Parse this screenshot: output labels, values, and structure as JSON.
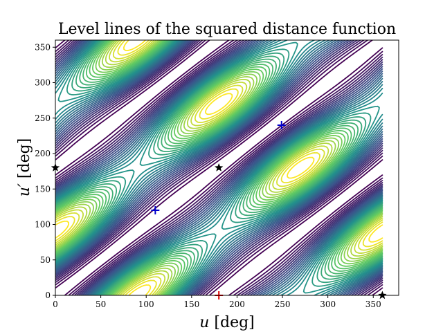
{
  "chart_data": {
    "type": "contour",
    "title": "Level lines of the squared distance function",
    "xlabel_var": "u",
    "xlabel_unit": "[deg]",
    "ylabel_var": "u′",
    "ylabel_unit": "[deg]",
    "xlim": [
      0,
      378
    ],
    "ylim": [
      0,
      360
    ],
    "xticks": [
      0,
      50,
      100,
      150,
      200,
      250,
      300,
      350
    ],
    "yticks": [
      0,
      50,
      100,
      150,
      200,
      250,
      300,
      350
    ],
    "colormap": [
      "#440154",
      "#3b528b",
      "#21918c",
      "#5ec962",
      "#fde725"
    ],
    "contour_params": {
      "A": 80,
      "B": 50,
      "D": 1.5,
      "ps": 1.9
    },
    "markers": [
      {
        "type": "star",
        "color": "#000000",
        "u": 180,
        "v": 180
      },
      {
        "type": "star",
        "color": "#000000",
        "u": 0,
        "v": 180
      },
      {
        "type": "star",
        "color": "#000000",
        "u": 360,
        "v": 0
      },
      {
        "type": "plus",
        "color": "#0000cc",
        "u": 110,
        "v": 120
      },
      {
        "type": "plus",
        "color": "#0000cc",
        "u": 249,
        "v": 240
      },
      {
        "type": "plus",
        "color": "#dd0000",
        "u": 180,
        "v": 0
      }
    ]
  }
}
